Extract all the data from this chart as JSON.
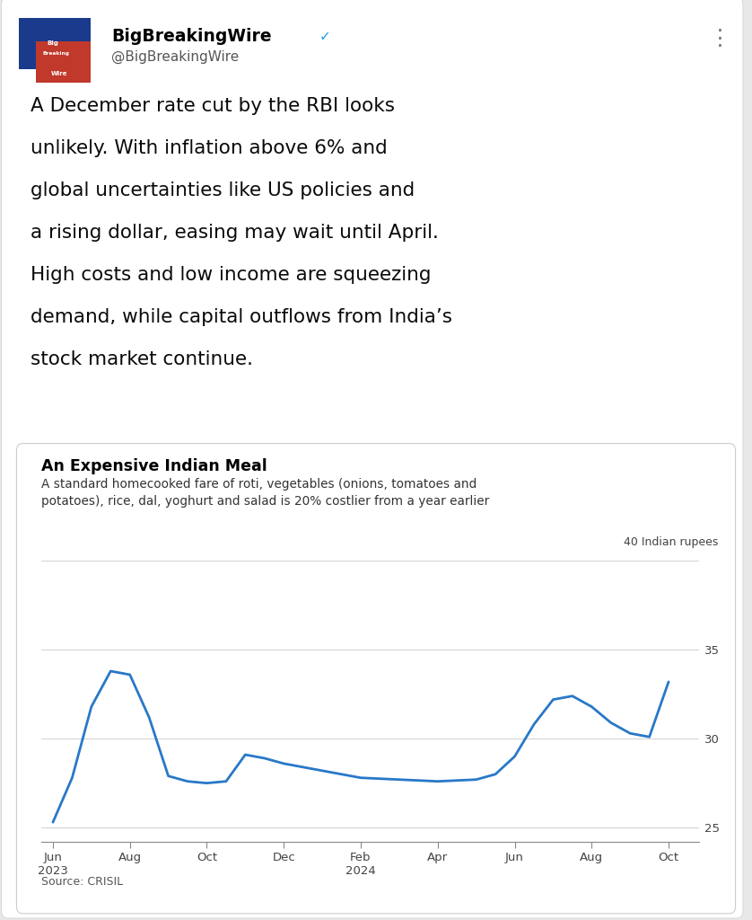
{
  "bg_color": "#e8e8e8",
  "card_color": "#ffffff",
  "header_name": "BigBreakingWire",
  "header_handle": "@BigBreakingWire",
  "verified_color": "#1d9bf0",
  "chart_title": "An Expensive Indian Meal",
  "chart_subtitle_line1": "A standard homecooked fare of roti, vegetables (onions, tomatoes and",
  "chart_subtitle_line2": "potatoes), rice, dal, yoghurt and salad is 20% costlier from a year earlier",
  "ylabel_text": "40 Indian rupees",
  "source_text": "Source: CRISIL",
  "line_color": "#2878c8",
  "line_width": 2.0,
  "yticks": [
    25,
    30,
    35
  ],
  "ylim": [
    24.2,
    40.5
  ],
  "x_labels": [
    "Jun\n2023",
    "Aug",
    "Oct",
    "Dec",
    "Feb\n2024",
    "Apr",
    "Jun",
    "Aug",
    "Oct"
  ],
  "x_positions": [
    0,
    2,
    4,
    6,
    8,
    10,
    12,
    14,
    16
  ],
  "grid_color": "#d0d0d0",
  "tick_color": "#444444",
  "axis_color": "#999999",
  "tweet_lines": [
    "A December rate cut by the RBI looks",
    "unlikely. With inflation above 6% and",
    "global uncertainties like US policies and",
    "a rising dollar, easing may wait until April.",
    "High costs and low income are squeezing",
    "demand, while capital outflows from India’s",
    "stock market continue."
  ]
}
